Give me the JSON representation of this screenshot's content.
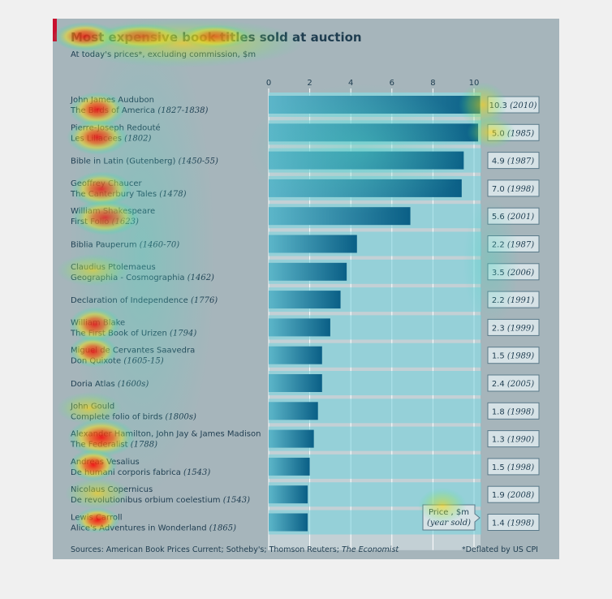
{
  "chart_data": {
    "type": "bar",
    "orientation": "horizontal",
    "title": "Most expensive book titles sold at auction",
    "subtitle": "At today's prices*, excluding commission, $m",
    "xlim": [
      0,
      10.5
    ],
    "x_ticks": [
      "0",
      "2",
      "4",
      "6",
      "8",
      "10"
    ],
    "rows": [
      {
        "author": "John James Audubon",
        "title": "The Birds of America",
        "years": "(1827-1838)",
        "value": 10.3,
        "price": "10.3",
        "year_sold": "(2010)"
      },
      {
        "author": "Pierre-Joseph Redouté",
        "title": "Les Liliacees",
        "years": "(1802)",
        "value": 10.2,
        "price": "5.0",
        "year_sold": "(1985)"
      },
      {
        "author": "",
        "title": "Bible in Latin (Gutenberg)",
        "years": "(1450-55)",
        "value": 9.5,
        "price": "4.9",
        "year_sold": "(1987)"
      },
      {
        "author": "Geoffrey Chaucer",
        "title": "The Canterbury Tales",
        "years": "(1478)",
        "value": 9.4,
        "price": "7.0",
        "year_sold": "(1998)"
      },
      {
        "author": "William Shakespeare",
        "title": "First Folio",
        "years": "(1623)",
        "value": 6.9,
        "price": "5.6",
        "year_sold": "(2001)"
      },
      {
        "author": "",
        "title": "Biblia Pauperum",
        "years": "(1460-70)",
        "value": 4.3,
        "price": "2.2",
        "year_sold": "(1987)"
      },
      {
        "author": "Claudius Ptolemaeus",
        "title": "Geographia - Cosmographia",
        "years": "(1462)",
        "value": 3.8,
        "price": "3.5",
        "year_sold": "(2006)"
      },
      {
        "author": "",
        "title": "Declaration of Independence",
        "years": "(1776)",
        "value": 3.5,
        "price": "2.2",
        "year_sold": "(1991)"
      },
      {
        "author": "William Blake",
        "title": "The First Book of Urizen",
        "years": "(1794)",
        "value": 3.0,
        "price": "2.3",
        "year_sold": "(1999)"
      },
      {
        "author": "Miguel de Cervantes Saavedra",
        "title": "Don Quixote",
        "years": "(1605-15)",
        "value": 2.6,
        "price": "1.5",
        "year_sold": "(1989)"
      },
      {
        "author": "",
        "title": "Doria Atlas",
        "years": "(1600s)",
        "value": 2.6,
        "price": "2.4",
        "year_sold": "(2005)"
      },
      {
        "author": "John Gould",
        "title": "Complete folio of birds",
        "years": "(1800s)",
        "value": 2.4,
        "price": "1.8",
        "year_sold": "(1998)"
      },
      {
        "author": "Alexander Hamilton, John Jay & James Madison",
        "title": "The Federalist",
        "years": "(1788)",
        "value": 2.2,
        "price": "1.3",
        "year_sold": "(1990)"
      },
      {
        "author": "Andreas Vesalius",
        "title": "De humani corporis fabrica",
        "years": "(1543)",
        "value": 2.0,
        "price": "1.5",
        "year_sold": "(1998)"
      },
      {
        "author": "Nicolaus Copernicus",
        "title": "De revolutionibus orbium coelestium",
        "years": "(1543)",
        "value": 1.9,
        "price": "1.9",
        "year_sold": "(2008)"
      },
      {
        "author": "Lewis Carroll",
        "title": "Alice's Adventures in Wonderland",
        "years": "(1865)",
        "value": 1.9,
        "price": "1.4",
        "year_sold": "(1998)"
      }
    ],
    "legend_box": {
      "line1": "Price , $m",
      "line2": "(year sold)"
    },
    "source_prefix": "Sources: American Book Prices Current; Sotheby's; Thomson Reuters; ",
    "source_italic": "The Economist",
    "footnote": "*Deflated by US CPI",
    "heatmap_overlay": true,
    "colors": {
      "panel": "#a6b5bb",
      "bar_dark": "#0a5f86",
      "bar_light": "#3fa6bf",
      "band": "#5fc9d6",
      "text": "#1f3d50",
      "accent_red": "#c8102e"
    }
  }
}
